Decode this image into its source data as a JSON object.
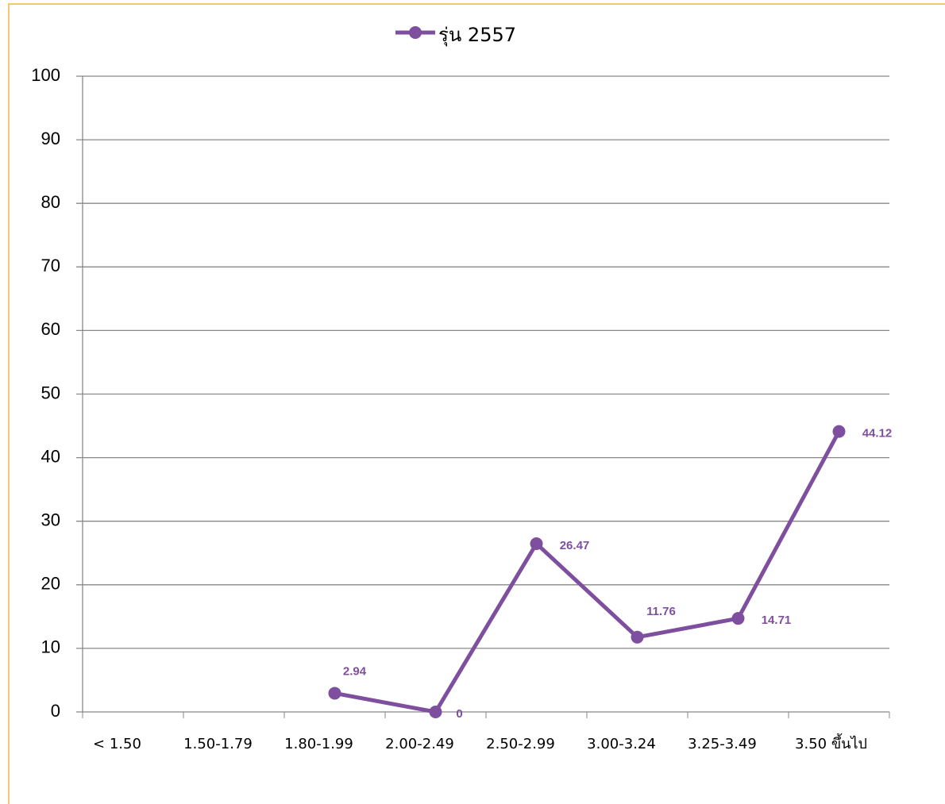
{
  "chart_data": {
    "type": "line",
    "categories": [
      "< 1.50",
      "1.50-1.79",
      "1.80-1.99",
      "2.00-2.49",
      "2.50-2.99",
      "3.00-3.24",
      "3.25-3.49",
      "3.50  ขึ้นไป"
    ],
    "series": [
      {
        "name": "รุ่น 2557",
        "color": "#7f4f9f",
        "values": [
          null,
          null,
          2.94,
          0,
          26.47,
          11.76,
          14.71,
          44.12
        ]
      }
    ],
    "ylim": [
      0,
      100
    ],
    "yticks": [
      0,
      10,
      20,
      30,
      40,
      50,
      60,
      70,
      80,
      90,
      100
    ],
    "grid": true,
    "legend": "top"
  }
}
